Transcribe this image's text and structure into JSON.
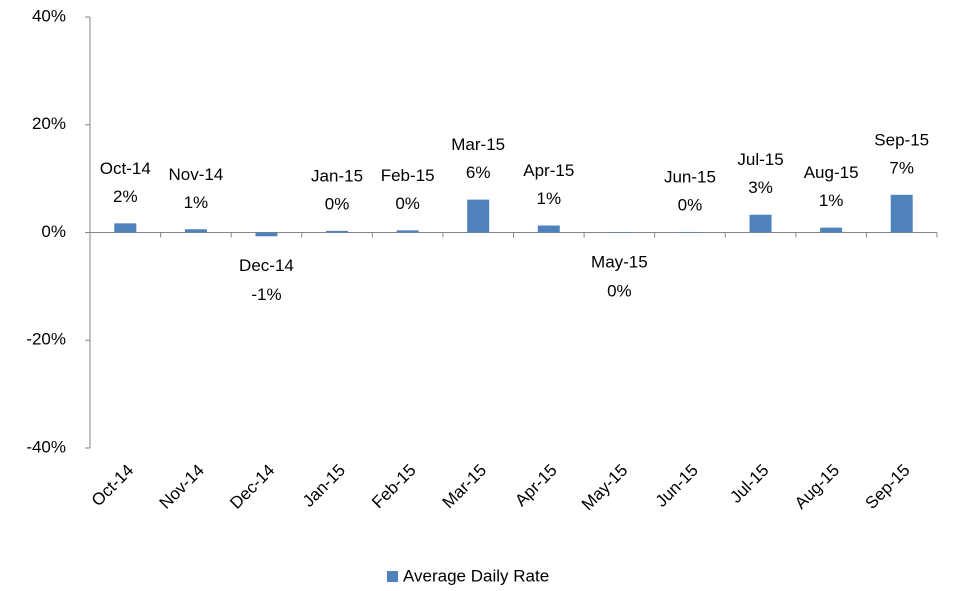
{
  "chart_data": {
    "type": "bar",
    "categories": [
      "Oct-14",
      "Nov-14",
      "Dec-14",
      "Jan-15",
      "Feb-15",
      "Mar-15",
      "Apr-15",
      "May-15",
      "Jun-15",
      "Jul-15",
      "Aug-15",
      "Sep-15"
    ],
    "series": [
      {
        "name": "Average Daily Rate",
        "color": "#4f81bd",
        "values": [
          1.7,
          0.6,
          -0.7,
          0.3,
          0.4,
          6.1,
          1.3,
          -0.1,
          0.1,
          3.3,
          0.9,
          7.0
        ],
        "value_labels": [
          "2%",
          "1%",
          "-1%",
          "0%",
          "0%",
          "6%",
          "1%",
          "0%",
          "0%",
          "3%",
          "1%",
          "7%"
        ]
      }
    ],
    "ylim": [
      -40,
      40
    ],
    "yticks": [
      {
        "value": -40,
        "label": "-40%"
      },
      {
        "value": -20,
        "label": "-20%"
      },
      {
        "value": 0,
        "label": "0%"
      },
      {
        "value": 20,
        "label": "20%"
      },
      {
        "value": 40,
        "label": "40%"
      }
    ],
    "legend": "bottom"
  }
}
